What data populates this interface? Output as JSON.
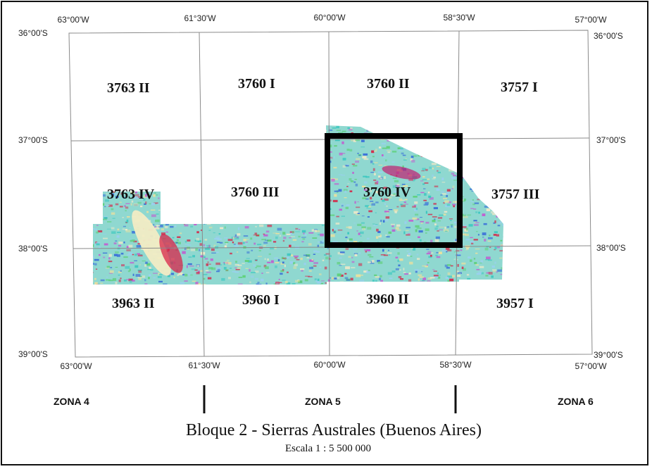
{
  "map": {
    "colors": {
      "grid_line": "#8a8a8a",
      "border": "#111111",
      "highlight": "#000000",
      "survey_palette": [
        "#3ec8c0",
        "#5fd07a",
        "#e8e0a0",
        "#d03050",
        "#3a70d8",
        "#c060d0",
        "#9ad0f0",
        "#f0e8c8"
      ]
    },
    "longitude_labels_top": [
      "63°00'W",
      "61°30'W",
      "60°00'W",
      "58°30'W",
      "57°00'W"
    ],
    "longitude_labels_bottom": [
      "63°00'W",
      "61°30'W",
      "60°00'W",
      "58°30'W",
      "57°00'W"
    ],
    "latitude_labels_left": [
      "36°00'S",
      "37°00'S",
      "38°00'S",
      "39°00'S"
    ],
    "latitude_labels_right": [
      "36°00'S",
      "37°00'S",
      "38°00'S",
      "39°00'S"
    ],
    "sheets_row1": [
      "3763 II",
      "3760 I",
      "3760 II",
      "3757 I"
    ],
    "sheets_row2": [
      "3763 IV",
      "3760 III",
      "3760 IV",
      "3757 III"
    ],
    "sheets_row3": [
      "3963 II",
      "3960 I",
      "3960 II",
      "3957 I"
    ],
    "highlighted_sheet": "3760 IV"
  },
  "zones": [
    "ZONA 4",
    "ZONA 5",
    "ZONA 6"
  ],
  "title": "Bloque 2 - Sierras Australes (Buenos Aires)",
  "scale": "Escala 1 : 5 500 000"
}
